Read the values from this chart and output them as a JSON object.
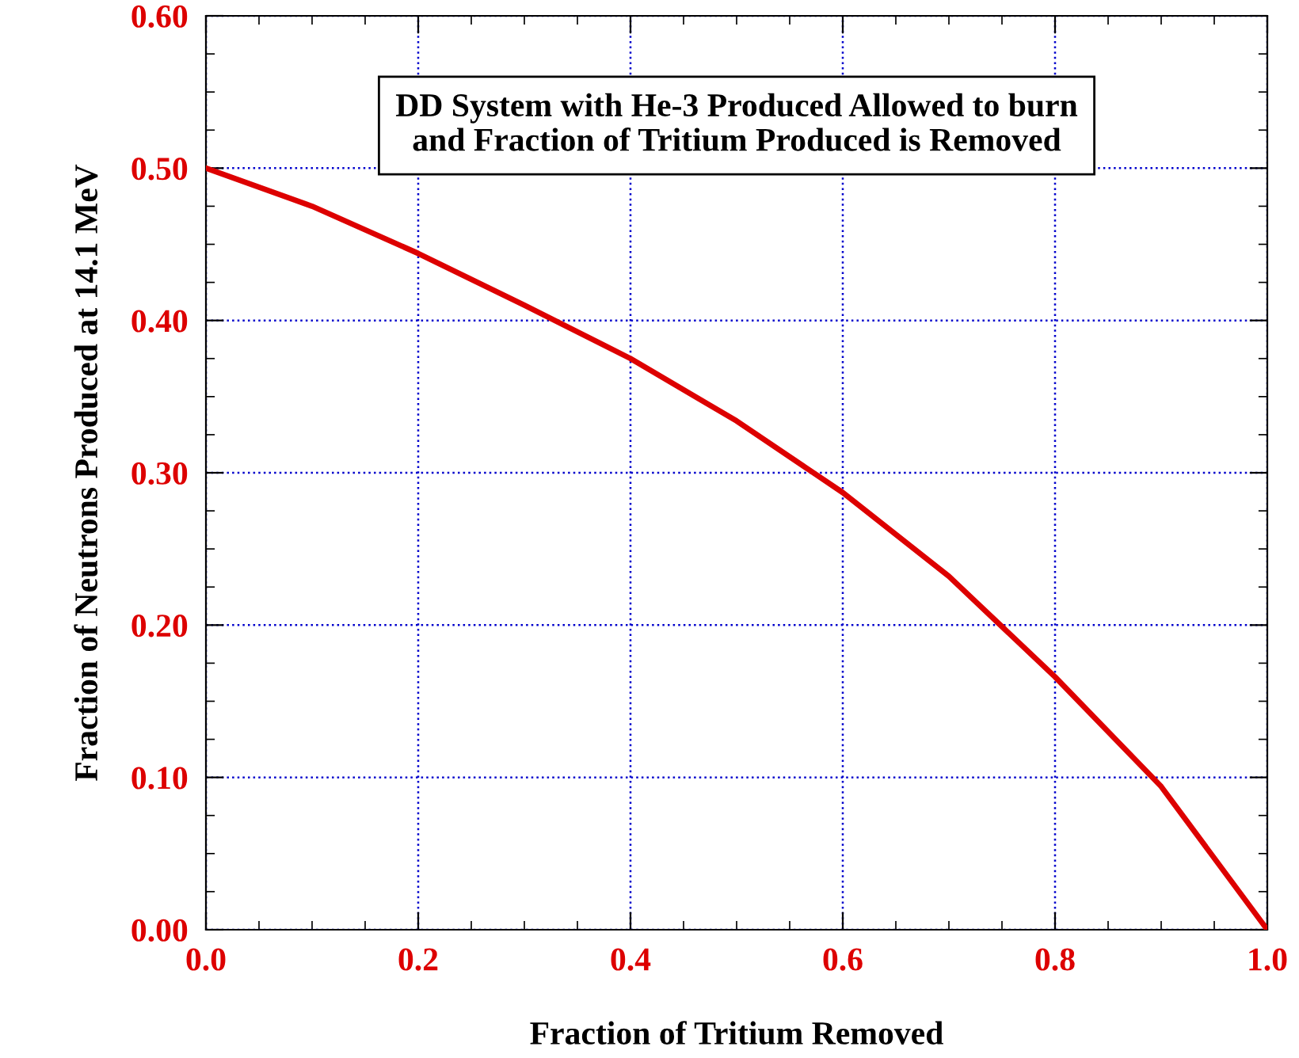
{
  "chart_data": {
    "type": "line",
    "title": "DD System with He-3 Produced Allowed to burn\nand Fraction of Tritium Produced is Removed",
    "xlabel": "Fraction of Tritium Removed",
    "ylabel": "Fraction of Neutrons Produced at 14.1 MeV",
    "x": [
      0.0,
      0.1,
      0.2,
      0.3,
      0.4,
      0.5,
      0.6,
      0.7,
      0.8,
      0.9,
      1.0
    ],
    "series": [
      {
        "color": "#dd0000",
        "values": [
          0.5,
          0.475,
          0.444,
          0.41,
          0.375,
          0.334,
          0.287,
          0.232,
          0.166,
          0.094,
          0.0
        ]
      }
    ],
    "xlim": [
      0.0,
      1.0
    ],
    "ylim": [
      0.0,
      0.6
    ],
    "xticks": [
      {
        "value": 0.0,
        "label": "0.0"
      },
      {
        "value": 0.2,
        "label": "0.2"
      },
      {
        "value": 0.4,
        "label": "0.4"
      },
      {
        "value": 0.6,
        "label": "0.6"
      },
      {
        "value": 0.8,
        "label": "0.8"
      },
      {
        "value": 1.0,
        "label": "1.0"
      }
    ],
    "yticks": [
      {
        "value": 0.0,
        "label": "0.00"
      },
      {
        "value": 0.1,
        "label": "0.10"
      },
      {
        "value": 0.2,
        "label": "0.20"
      },
      {
        "value": 0.3,
        "label": "0.30"
      },
      {
        "value": 0.4,
        "label": "0.40"
      },
      {
        "value": 0.5,
        "label": "0.50"
      },
      {
        "value": 0.6,
        "label": "0.60"
      }
    ],
    "grid": true,
    "marker": "none",
    "line_style": "solid"
  }
}
